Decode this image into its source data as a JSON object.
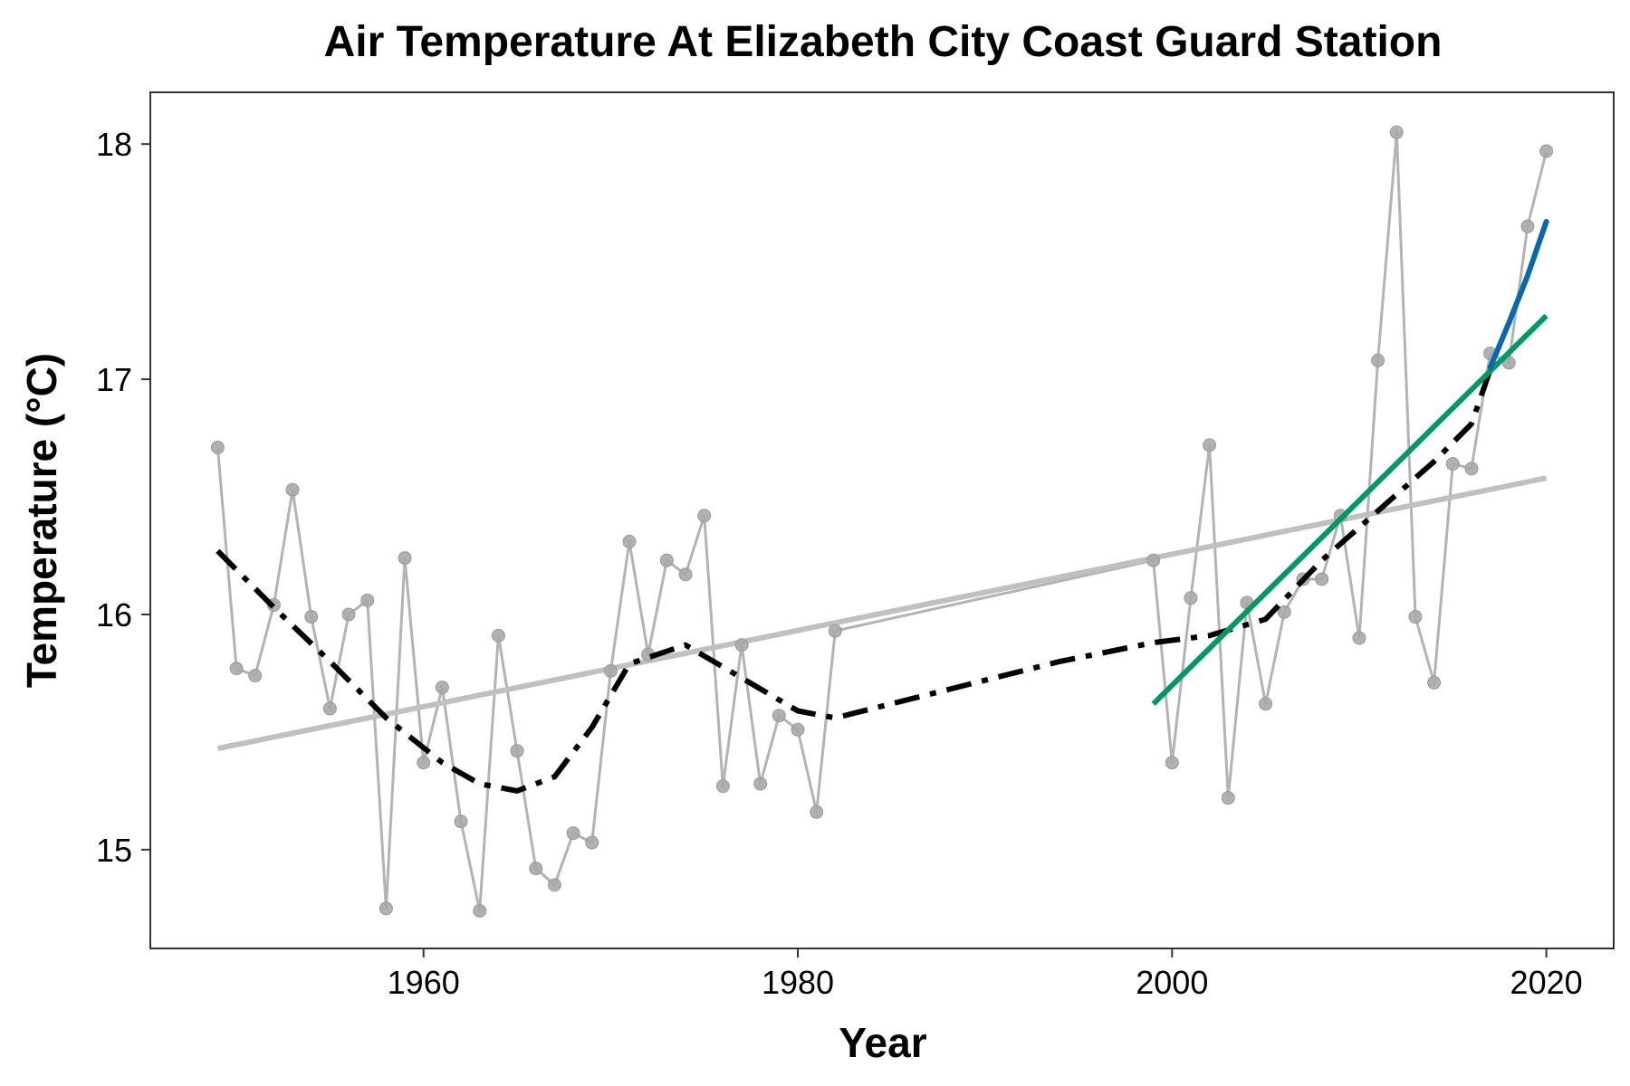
{
  "chart_data": {
    "type": "line",
    "title": "Air Temperature At Elizabeth City Coast Guard Station",
    "xlabel": "Year",
    "ylabel": "Temperature (°C)",
    "xlim": [
      1945.4,
      2023.6
    ],
    "ylim": [
      14.58,
      18.22
    ],
    "x_ticks": [
      1960,
      1980,
      2000,
      2020
    ],
    "x_tick_labels": [
      "1960",
      "1980",
      "2000",
      "2020"
    ],
    "y_ticks": [
      15,
      16,
      17,
      18
    ],
    "y_tick_labels": [
      "15",
      "16",
      "17",
      "18"
    ],
    "grid": false,
    "legend": "none",
    "colors": {
      "observed": "#b3b3b3",
      "linear_trend": "#c0c0c0",
      "smooth": "#000000",
      "recent_trend": "#009966",
      "latest_trend": "#0868ac"
    },
    "series": [
      {
        "style": "gray points and line",
        "segments": [
          {
            "x": [
              1949,
              1950,
              1951,
              1952,
              1953,
              1954,
              1955,
              1956,
              1957,
              1958,
              1959,
              1960,
              1961,
              1962,
              1963,
              1964,
              1965,
              1966,
              1967,
              1968,
              1969,
              1970,
              1971,
              1972,
              1973,
              1974,
              1975,
              1976,
              1977,
              1978,
              1979,
              1980,
              1981,
              1982
            ],
            "y": [
              16.71,
              15.77,
              15.74,
              16.04,
              16.53,
              15.99,
              15.6,
              16.0,
              16.06,
              14.75,
              16.24,
              15.37,
              15.69,
              15.12,
              14.74,
              15.91,
              15.42,
              14.92,
              14.85,
              15.07,
              15.03,
              15.76,
              16.31,
              15.83,
              16.23,
              16.17,
              16.42,
              15.27,
              15.87,
              15.28,
              15.57,
              15.51,
              15.16,
              15.93
            ]
          },
          {
            "x": [
              1999,
              2000,
              2001,
              2002,
              2003,
              2004,
              2005,
              2006,
              2007,
              2008,
              2009,
              2010,
              2011,
              2012,
              2013,
              2014,
              2015,
              2016,
              2017,
              2018,
              2019,
              2020
            ],
            "y": [
              16.23,
              15.37,
              16.07,
              16.72,
              15.22,
              16.05,
              15.62,
              16.01,
              16.15,
              16.15,
              16.42,
              15.9,
              17.08,
              18.05,
              15.99,
              15.71,
              16.64,
              16.62,
              17.11,
              17.07,
              17.65,
              17.97
            ]
          }
        ],
        "connector": {
          "x": [
            1982,
            1999
          ],
          "y": [
            15.93,
            16.23
          ]
        }
      },
      {
        "style": "gray linear trend",
        "x": [
          1949,
          2020
        ],
        "y": [
          15.43,
          16.58
        ]
      },
      {
        "style": "black dash-dot smooth",
        "x": [
          1949,
          1952,
          1955,
          1958,
          1961,
          1963,
          1965,
          1967,
          1969,
          1971,
          1974,
          1977,
          1980,
          1982,
          1986,
          1990,
          1994,
          1999,
          2002,
          2005,
          2008,
          2011,
          2014,
          2016,
          2017
        ],
        "y": [
          16.27,
          16.03,
          15.8,
          15.56,
          15.37,
          15.28,
          15.25,
          15.31,
          15.52,
          15.79,
          15.87,
          15.73,
          15.59,
          15.56,
          15.64,
          15.72,
          15.8,
          15.88,
          15.91,
          15.98,
          16.23,
          16.44,
          16.65,
          16.81,
          17.04
        ]
      },
      {
        "style": "green recent trend",
        "x": [
          1999,
          2020
        ],
        "y": [
          15.62,
          17.27
        ]
      },
      {
        "style": "blue latest trend",
        "x": [
          2017,
          2018,
          2019,
          2020
        ],
        "y": [
          17.05,
          17.24,
          17.44,
          17.67
        ]
      }
    ]
  }
}
